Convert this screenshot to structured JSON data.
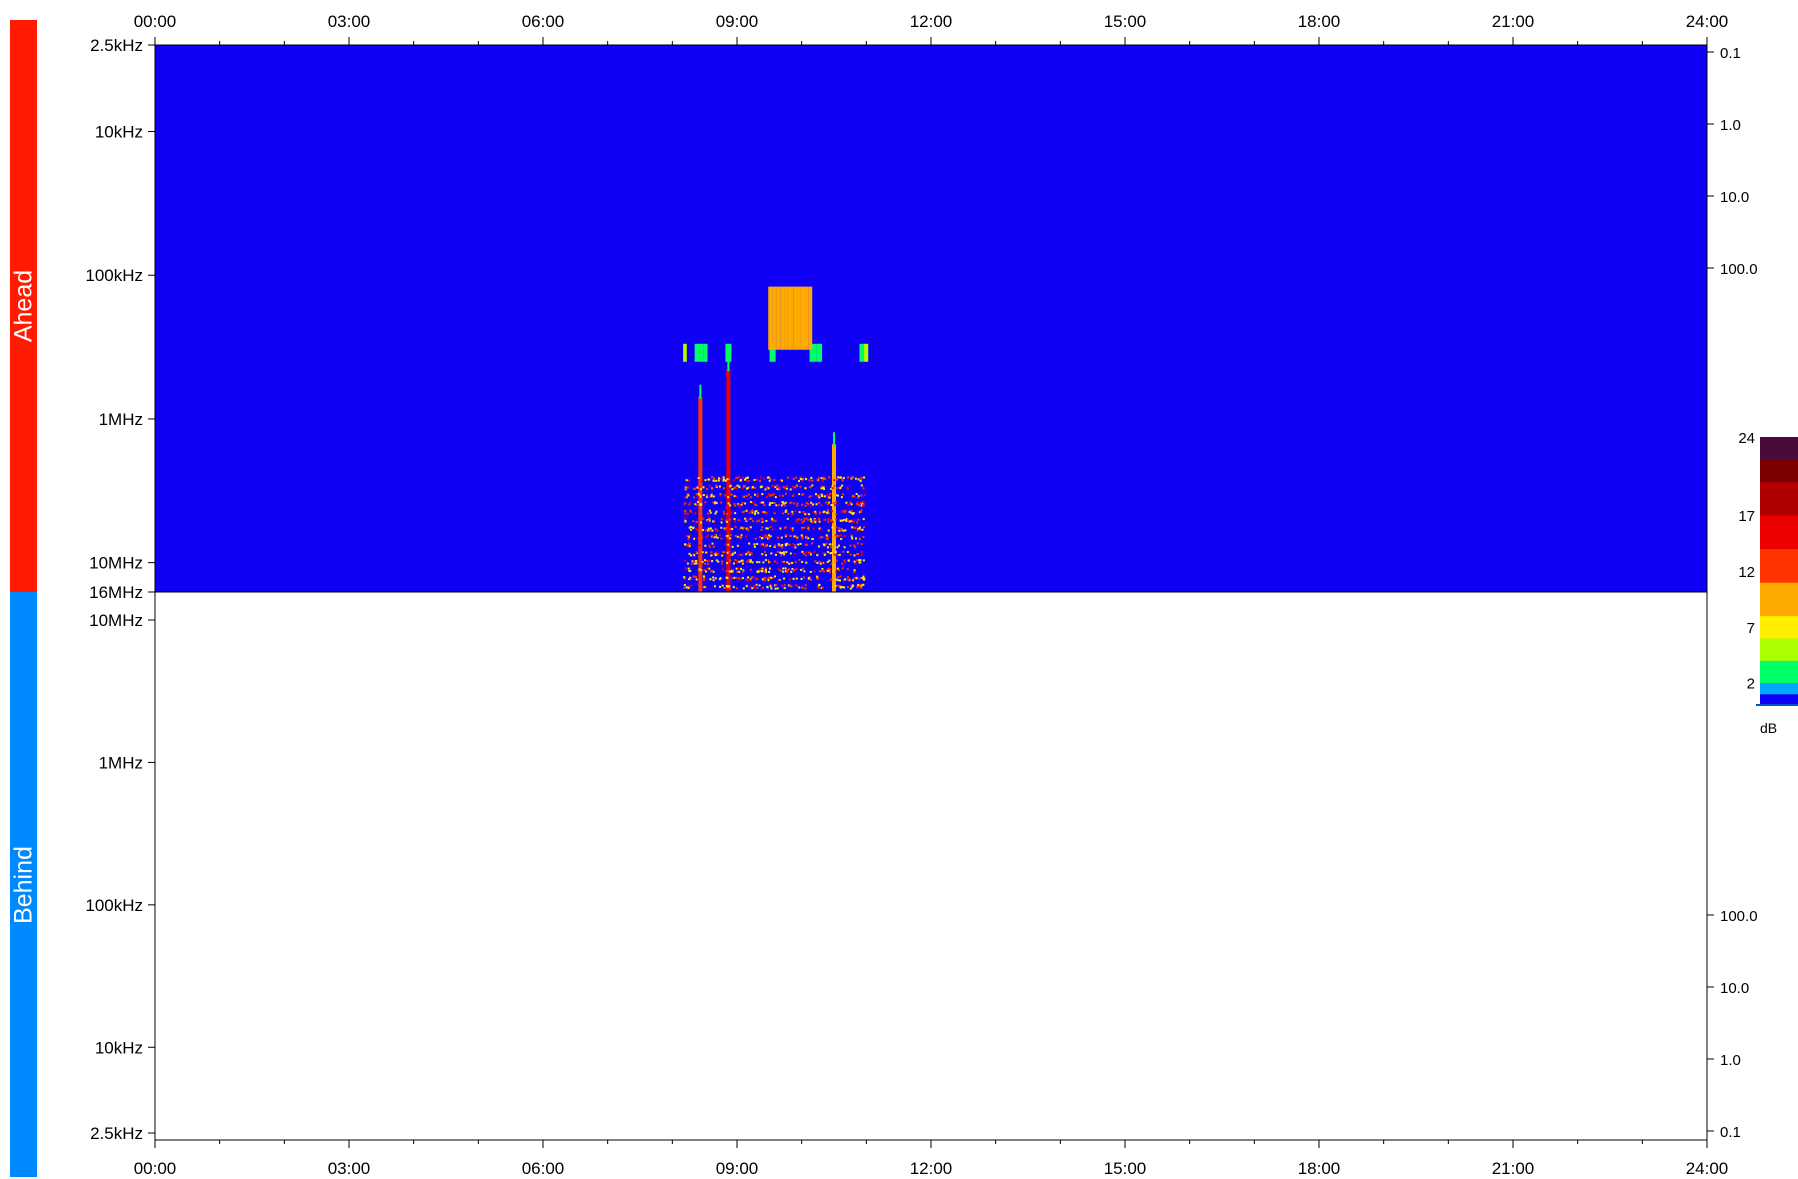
{
  "colors": {
    "ahead_band": "#ff1a00",
    "behind_band": "#0088ff",
    "background_level": "#1000f5"
  },
  "bands": {
    "ahead": "Ahead",
    "behind": "Behind"
  },
  "colorbar": {
    "unit": "dB",
    "ticks": [
      "24",
      "17",
      "12",
      "7",
      "2"
    ]
  },
  "chart_data": [
    {
      "type": "heatmap",
      "panel": "Ahead",
      "x_ticks": [
        "00:00",
        "03:00",
        "06:00",
        "09:00",
        "12:00",
        "15:00",
        "18:00",
        "21:00",
        "24:00"
      ],
      "y_ticks_left": [
        "2.5kHz",
        "10kHz",
        "100kHz",
        "1MHz",
        "10MHz",
        "16MHz"
      ],
      "y_ticks_right": [
        "0.1",
        "1.0",
        "10.0",
        "100.0"
      ],
      "xlim": [
        "00:00",
        "24:00"
      ],
      "ylim_hz": [
        2500,
        16000000
      ],
      "y_scale": "log",
      "background_db": 0,
      "features": [
        {
          "kind": "band",
          "t_start": "08:10",
          "t_end": "10:58",
          "f_low_hz": 300000,
          "f_high_hz": 400000,
          "level_db": 2
        },
        {
          "kind": "band",
          "t_start": "09:29",
          "t_end": "10:18",
          "f_low_hz": 120000,
          "f_high_hz": 330000,
          "level_db": 8
        },
        {
          "kind": "burst",
          "t": "08:26",
          "f_low_hz": 700000,
          "f_high_hz": 16000000,
          "level_db": 12
        },
        {
          "kind": "burst",
          "t": "08:52",
          "f_low_hz": 450000,
          "f_high_hz": 16000000,
          "level_db": 14
        },
        {
          "kind": "burst",
          "t": "10:30",
          "f_low_hz": 1500000,
          "f_high_hz": 16000000,
          "level_db": 10
        },
        {
          "kind": "noise",
          "t_start": "08:10",
          "t_end": "10:58",
          "f_low_hz": 2500000,
          "f_high_hz": 16000000,
          "level_db": 10
        }
      ]
    },
    {
      "type": "heatmap",
      "panel": "Behind",
      "x_ticks": [
        "00:00",
        "03:00",
        "06:00",
        "09:00",
        "12:00",
        "15:00",
        "18:00",
        "21:00",
        "24:00"
      ],
      "y_ticks_left": [
        "10MHz",
        "1MHz",
        "100kHz",
        "10kHz",
        "2.5kHz"
      ],
      "y_ticks_right": [
        "100.0",
        "10.0",
        "1.0",
        "0.1"
      ],
      "xlim": [
        "00:00",
        "24:00"
      ],
      "ylim_hz": [
        10000000,
        2500
      ],
      "y_scale": "log",
      "features": []
    }
  ]
}
